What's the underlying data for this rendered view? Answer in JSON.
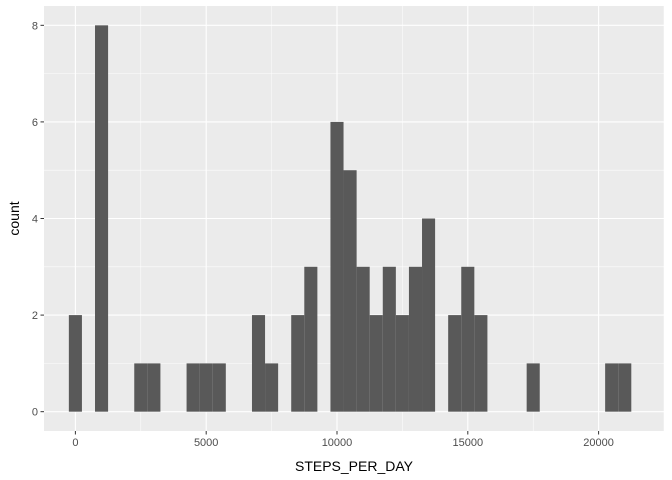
{
  "chart_data": {
    "type": "bar",
    "subtype": "histogram",
    "title": "",
    "xlabel": "STEPS_PER_DAY",
    "ylabel": "count",
    "xlim": [
      -1200,
      22500
    ],
    "ylim": [
      -0.4,
      8.4
    ],
    "x_ticks": [
      0,
      5000,
      10000,
      15000,
      20000
    ],
    "x_tick_labels": [
      "0",
      "5000",
      "10000",
      "15000",
      "20000"
    ],
    "y_ticks": [
      0,
      2,
      4,
      6,
      8
    ],
    "y_tick_labels": [
      "0",
      "2",
      "4",
      "6",
      "8"
    ],
    "bin_width": 500,
    "bins": [
      {
        "x0": -250,
        "x1": 250,
        "count": 2
      },
      {
        "x0": 750,
        "x1": 1250,
        "count": 8
      },
      {
        "x0": 2250,
        "x1": 2750,
        "count": 1
      },
      {
        "x0": 2750,
        "x1": 3250,
        "count": 1
      },
      {
        "x0": 4250,
        "x1": 4750,
        "count": 1
      },
      {
        "x0": 4750,
        "x1": 5250,
        "count": 1
      },
      {
        "x0": 5250,
        "x1": 5750,
        "count": 1
      },
      {
        "x0": 6750,
        "x1": 7250,
        "count": 2
      },
      {
        "x0": 7250,
        "x1": 7750,
        "count": 1
      },
      {
        "x0": 8250,
        "x1": 8750,
        "count": 2
      },
      {
        "x0": 8750,
        "x1": 9250,
        "count": 3
      },
      {
        "x0": 9750,
        "x1": 10250,
        "count": 6
      },
      {
        "x0": 10250,
        "x1": 10750,
        "count": 5
      },
      {
        "x0": 10750,
        "x1": 11250,
        "count": 3
      },
      {
        "x0": 11250,
        "x1": 11750,
        "count": 2
      },
      {
        "x0": 11750,
        "x1": 12250,
        "count": 3
      },
      {
        "x0": 12250,
        "x1": 12750,
        "count": 2
      },
      {
        "x0": 12750,
        "x1": 13250,
        "count": 3
      },
      {
        "x0": 13250,
        "x1": 13750,
        "count": 4
      },
      {
        "x0": 14250,
        "x1": 14750,
        "count": 2
      },
      {
        "x0": 14750,
        "x1": 15250,
        "count": 3
      },
      {
        "x0": 15250,
        "x1": 15750,
        "count": 2
      },
      {
        "x0": 17250,
        "x1": 17750,
        "count": 1
      },
      {
        "x0": 20250,
        "x1": 20750,
        "count": 1
      },
      {
        "x0": 20750,
        "x1": 21250,
        "count": 1
      }
    ],
    "grid": true,
    "legend": "none",
    "colors": {
      "panel_background": "#ebebeb",
      "grid_major": "#ffffff",
      "bar_fill": "#595959",
      "tick_label": "#4d4d4d",
      "tick_mark": "#333333"
    }
  }
}
